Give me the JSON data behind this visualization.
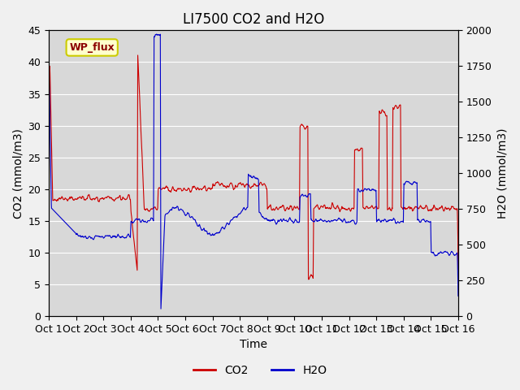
{
  "title": "LI7500 CO2 and H2O",
  "xlabel": "Time",
  "ylabel_left": "CO2 (mmol/m3)",
  "ylabel_right": "H2O (mmol/m3)",
  "ylim_left": [
    0,
    45
  ],
  "ylim_right": [
    0,
    2000
  ],
  "xtick_labels": [
    "Oct 1",
    "Oct 2",
    "Oct 3",
    "Oct 4",
    "Oct 5",
    "Oct 6",
    "Oct 7",
    "Oct 8",
    "Oct 9",
    "Oct 10",
    "Oct 11",
    "Oct 12",
    "Oct 13",
    "Oct 14",
    "Oct 15",
    "Oct 16"
  ],
  "co2_color": "#cc0000",
  "h2o_color": "#0000cc",
  "background_color": "#e8e8e8",
  "plot_bg_color": "#d8d8d8",
  "annotation_text": "WP_flux",
  "annotation_bg": "#ffffcc",
  "annotation_border": "#cccc00",
  "legend_co2": "CO2",
  "legend_h2o": "H2O",
  "title_fontsize": 12,
  "axis_fontsize": 10,
  "tick_fontsize": 9
}
